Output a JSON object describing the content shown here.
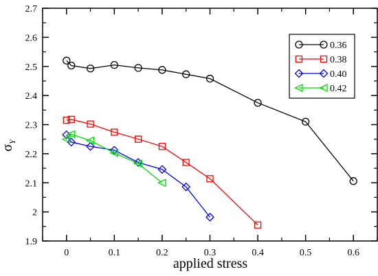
{
  "chart_data": {
    "type": "line",
    "title": "",
    "xlabel": "applied stress",
    "ylabel": "σ",
    "ylabel_subscript": "Y",
    "xlim": [
      -0.05,
      0.65
    ],
    "ylim": [
      1.9,
      2.7
    ],
    "xticks": [
      0,
      0.1,
      0.2,
      0.3,
      0.4,
      0.5,
      0.6
    ],
    "xtick_labels": [
      "0",
      "0.1",
      "0.2",
      "0.3",
      "0.4",
      "0.5",
      "0.6"
    ],
    "yticks": [
      1.9,
      2.0,
      2.1,
      2.2,
      2.3,
      2.4,
      2.5,
      2.6,
      2.7
    ],
    "ytick_labels": [
      "1.9",
      "2",
      "2.1",
      "2.2",
      "2.3",
      "2.4",
      "2.5",
      "2.6",
      "2.7"
    ],
    "grid": false,
    "legend": {
      "placement": "top-right"
    },
    "series": [
      {
        "name": "0.36",
        "color": "#000000",
        "marker": "circle",
        "x": [
          0,
          0.01,
          0.05,
          0.1,
          0.15,
          0.2,
          0.25,
          0.3,
          0.4,
          0.5,
          0.6
        ],
        "y": [
          2.52,
          2.503,
          2.493,
          2.505,
          2.495,
          2.488,
          2.473,
          2.458,
          2.375,
          2.31,
          2.106
        ]
      },
      {
        "name": "0.38",
        "color": "#ff0000",
        "marker": "square",
        "x": [
          0,
          0.01,
          0.05,
          0.1,
          0.15,
          0.2,
          0.25,
          0.3,
          0.4
        ],
        "y": [
          2.315,
          2.318,
          2.302,
          2.274,
          2.25,
          2.225,
          2.17,
          2.114,
          1.955
        ]
      },
      {
        "name": "0.40",
        "color": "#0000ff",
        "marker": "diamond",
        "x": [
          0,
          0.01,
          0.05,
          0.1,
          0.15,
          0.2,
          0.25,
          0.3
        ],
        "y": [
          2.265,
          2.24,
          2.225,
          2.212,
          2.17,
          2.146,
          2.086,
          1.982
        ]
      },
      {
        "name": "0.42",
        "color": "#00dd00",
        "marker": "triangle-left",
        "x": [
          0,
          0.01,
          0.05,
          0.1,
          0.15,
          0.2
        ],
        "y": [
          2.25,
          2.267,
          2.245,
          2.203,
          2.166,
          2.1
        ]
      }
    ]
  }
}
